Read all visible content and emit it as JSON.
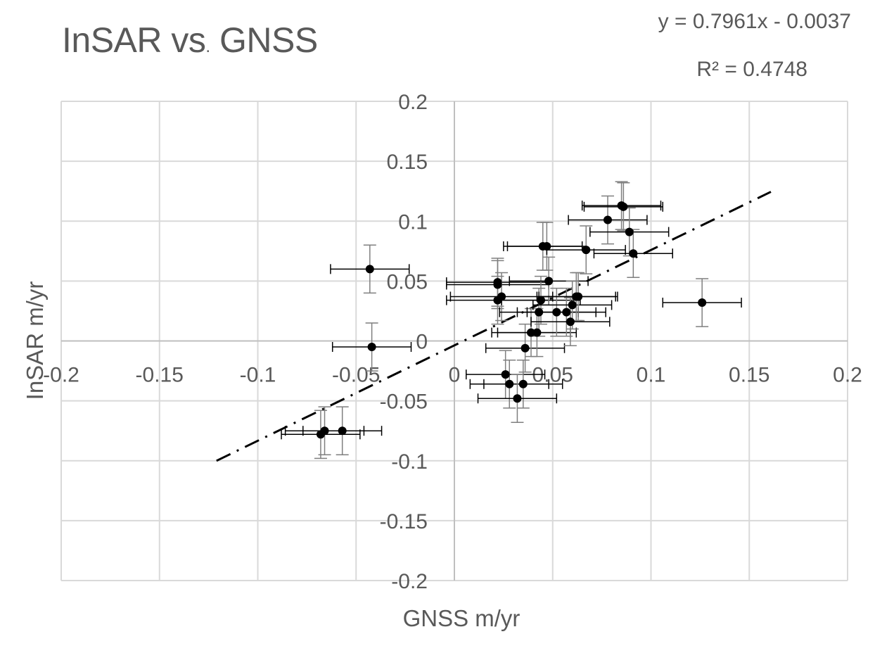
{
  "chart_data": {
    "type": "scatter",
    "title_main": "InSAR vs",
    "title_dot": ".",
    "title_tail": " GNSS",
    "xlabel": "GNSS m/yr",
    "ylabel": "InSAR m/yr",
    "xlim": [
      -0.2,
      0.2
    ],
    "ylim": [
      -0.2,
      0.2
    ],
    "grid": true,
    "x_ticks": [
      -0.2,
      -0.15,
      -0.1,
      -0.05,
      0,
      0.05,
      0.1,
      0.15,
      0.2
    ],
    "y_ticks": [
      -0.2,
      -0.15,
      -0.1,
      -0.05,
      0,
      0.05,
      0.1,
      0.15,
      0.2
    ],
    "x_tick_labels": [
      "-0.2",
      "-0.15",
      "-0.1",
      "-0.05",
      "0",
      "0.05",
      "0.1",
      "0.15",
      "0.2"
    ],
    "y_tick_labels": [
      "-0.2",
      "-0.15",
      "-0.1",
      "-0.05",
      "0",
      "0.05",
      "0.1",
      "0.15",
      "0.2"
    ],
    "points": [
      {
        "x": -0.043,
        "y": 0.06,
        "xerr": 0.02,
        "yerr": 0.02
      },
      {
        "x": -0.042,
        "y": -0.005,
        "xerr": 0.02,
        "yerr": 0.02
      },
      {
        "x": -0.068,
        "y": -0.078,
        "xerr": 0.02,
        "yerr": 0.02
      },
      {
        "x": -0.066,
        "y": -0.075,
        "xerr": 0.02,
        "yerr": 0.02
      },
      {
        "x": -0.057,
        "y": -0.075,
        "xerr": 0.02,
        "yerr": 0.02
      },
      {
        "x": 0.022,
        "y": 0.049,
        "xerr": 0.026,
        "yerr": 0.02
      },
      {
        "x": 0.022,
        "y": 0.047,
        "xerr": 0.026,
        "yerr": 0.02
      },
      {
        "x": 0.024,
        "y": 0.037,
        "xerr": 0.026,
        "yerr": 0.02
      },
      {
        "x": 0.022,
        "y": 0.034,
        "xerr": 0.026,
        "yerr": 0.02
      },
      {
        "x": 0.026,
        "y": -0.028,
        "xerr": 0.02,
        "yerr": 0.02
      },
      {
        "x": 0.028,
        "y": -0.036,
        "xerr": 0.02,
        "yerr": 0.02
      },
      {
        "x": 0.035,
        "y": -0.036,
        "xerr": 0.02,
        "yerr": 0.02
      },
      {
        "x": 0.032,
        "y": -0.048,
        "xerr": 0.02,
        "yerr": 0.02
      },
      {
        "x": 0.036,
        "y": -0.006,
        "xerr": 0.02,
        "yerr": 0.02
      },
      {
        "x": 0.039,
        "y": 0.007,
        "xerr": 0.02,
        "yerr": 0.02
      },
      {
        "x": 0.042,
        "y": 0.007,
        "xerr": 0.02,
        "yerr": 0.02
      },
      {
        "x": 0.043,
        "y": 0.024,
        "xerr": 0.02,
        "yerr": 0.02
      },
      {
        "x": 0.044,
        "y": 0.034,
        "xerr": 0.02,
        "yerr": 0.02
      },
      {
        "x": 0.045,
        "y": 0.079,
        "xerr": 0.02,
        "yerr": 0.02
      },
      {
        "x": 0.047,
        "y": 0.079,
        "xerr": 0.02,
        "yerr": 0.02
      },
      {
        "x": 0.048,
        "y": 0.05,
        "xerr": 0.02,
        "yerr": 0.02
      },
      {
        "x": 0.052,
        "y": 0.024,
        "xerr": 0.02,
        "yerr": 0.02
      },
      {
        "x": 0.057,
        "y": 0.024,
        "xerr": 0.02,
        "yerr": 0.02
      },
      {
        "x": 0.059,
        "y": 0.016,
        "xerr": 0.02,
        "yerr": 0.02
      },
      {
        "x": 0.06,
        "y": 0.03,
        "xerr": 0.02,
        "yerr": 0.02
      },
      {
        "x": 0.062,
        "y": 0.037,
        "xerr": 0.02,
        "yerr": 0.02
      },
      {
        "x": 0.063,
        "y": 0.037,
        "xerr": 0.02,
        "yerr": 0.02
      },
      {
        "x": 0.067,
        "y": 0.076,
        "xerr": 0.02,
        "yerr": 0.02
      },
      {
        "x": 0.078,
        "y": 0.101,
        "xerr": 0.02,
        "yerr": 0.02
      },
      {
        "x": 0.085,
        "y": 0.113,
        "xerr": 0.02,
        "yerr": 0.02
      },
      {
        "x": 0.086,
        "y": 0.112,
        "xerr": 0.02,
        "yerr": 0.02
      },
      {
        "x": 0.089,
        "y": 0.091,
        "xerr": 0.02,
        "yerr": 0.02
      },
      {
        "x": 0.091,
        "y": 0.073,
        "xerr": 0.02,
        "yerr": 0.02
      },
      {
        "x": 0.126,
        "y": 0.032,
        "xerr": 0.02,
        "yerr": 0.02
      }
    ],
    "trendline": {
      "slope": 0.7961,
      "intercept": -0.0037,
      "x_start": -0.121,
      "x_end": 0.161,
      "equation_label": "y = 0.7961x - 0.0037",
      "r2_label": "R² = 0.4748"
    },
    "colors": {
      "grid": "#d9d9d9",
      "axis": "#bfbfbf",
      "marker": "#000000",
      "error_bar_x": "#000000",
      "error_bar_y": "#7f7f7f",
      "trendline": "#000000",
      "text": "#595959"
    }
  }
}
